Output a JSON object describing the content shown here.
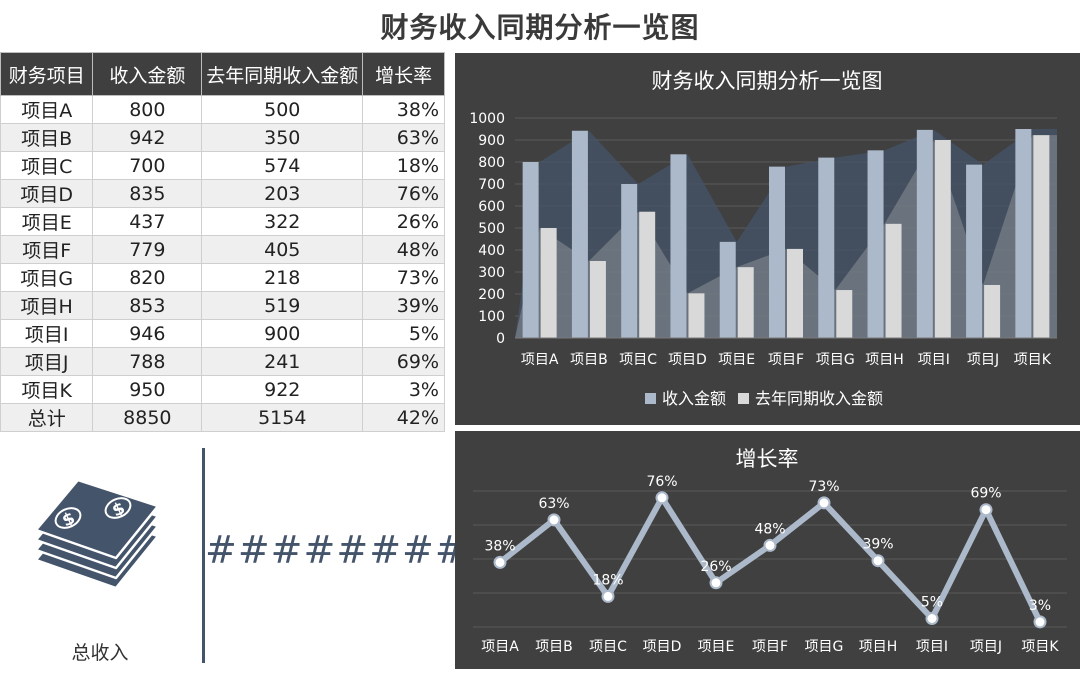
{
  "page_title": "财务收入同期分析一览图",
  "table": {
    "headers": [
      "财务项目",
      "收入金额",
      "去年同期收入金额",
      "增长率"
    ],
    "rows": [
      [
        "项目A",
        "800",
        "500",
        "38%"
      ],
      [
        "项目B",
        "942",
        "350",
        "63%"
      ],
      [
        "项目C",
        "700",
        "574",
        "18%"
      ],
      [
        "项目D",
        "835",
        "203",
        "76%"
      ],
      [
        "项目E",
        "437",
        "322",
        "26%"
      ],
      [
        "项目F",
        "779",
        "405",
        "48%"
      ],
      [
        "项目G",
        "820",
        "218",
        "73%"
      ],
      [
        "项目H",
        "853",
        "519",
        "39%"
      ],
      [
        "项目I",
        "946",
        "900",
        "5%"
      ],
      [
        "项目J",
        "788",
        "241",
        "69%"
      ],
      [
        "项目K",
        "950",
        "922",
        "3%"
      ]
    ],
    "total": [
      "总计",
      "8850",
      "5154",
      "42%"
    ]
  },
  "summary": {
    "label": "总收入",
    "value": "#########",
    "icon": "money-stack-icon"
  },
  "colors": {
    "panel_bg": "#404040",
    "income_bar": "#acb9ca",
    "prev_bar": "#d9d9d9",
    "line": "#acb9ca",
    "accent": "#44546a"
  },
  "chart_data": [
    {
      "type": "bar",
      "title": "财务收入同期分析一览图",
      "categories": [
        "项目A",
        "项目B",
        "项目C",
        "项目D",
        "项目E",
        "项目F",
        "项目G",
        "项目H",
        "项目I",
        "项目J",
        "项目K"
      ],
      "series": [
        {
          "name": "收入金额",
          "values": [
            800,
            942,
            700,
            835,
            437,
            779,
            820,
            853,
            946,
            788,
            950
          ]
        },
        {
          "name": "去年同期收入金额",
          "values": [
            500,
            350,
            574,
            203,
            322,
            405,
            218,
            519,
            900,
            241,
            922
          ]
        }
      ],
      "ylim": [
        0,
        1000
      ],
      "yticks": [
        0,
        100,
        200,
        300,
        400,
        500,
        600,
        700,
        800,
        900,
        1000
      ],
      "grid": true,
      "legend": "bottom"
    },
    {
      "type": "line",
      "title": "增长率",
      "categories": [
        "项目A",
        "项目B",
        "项目C",
        "项目D",
        "项目E",
        "项目F",
        "项目G",
        "项目H",
        "项目I",
        "项目J",
        "项目K"
      ],
      "values": [
        38,
        63,
        18,
        76,
        26,
        48,
        73,
        39,
        5,
        69,
        3
      ],
      "labels": [
        "38%",
        "63%",
        "18%",
        "76%",
        "26%",
        "48%",
        "73%",
        "39%",
        "5%",
        "69%",
        "3%"
      ],
      "grid": true
    }
  ]
}
